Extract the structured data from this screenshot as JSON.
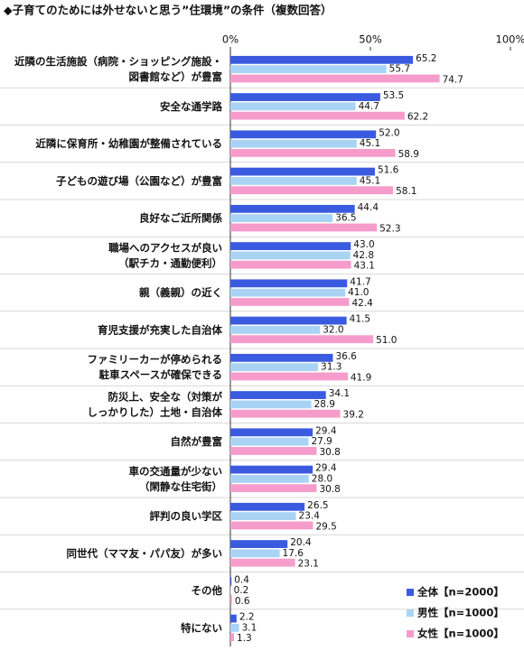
{
  "chart_data": {
    "type": "bar",
    "orientation": "horizontal",
    "title": "◆子育てのためには外せないと思う”住環境”の条件（複数回答）",
    "categories": [
      "近隣の生活施設（病院・ショッピング施設・\n図書館など）が豊富",
      "安全な通学路",
      "近隣に保育所・幼稚園が整備されている",
      "子どもの遊び場（公園など）が豊富",
      "良好なご近所関係",
      "職場へのアクセスが良い\n（駅チカ・通勤便利）",
      "親（義親）の近く",
      "育児支援が充実した自治体",
      "ファミリーカーが停められる\n駐車スペースが確保できる",
      "防災上、安全な（対策が\nしっかりした）土地・自治体",
      "自然が豊富",
      "車の交通量が少ない\n（閑静な住宅街）",
      "評判の良い学区",
      "同世代（ママ友・パパ友）が多い",
      "その他",
      "特にない"
    ],
    "series": [
      {
        "name": "全体【n=2000】",
        "color": "#3a5be0",
        "values": [
          65.2,
          53.5,
          52.0,
          51.6,
          44.4,
          43.0,
          41.7,
          41.5,
          36.6,
          34.1,
          29.4,
          29.4,
          26.5,
          20.4,
          0.4,
          2.2
        ],
        "value_labels": [
          "65.2",
          "53.5",
          "52.0",
          "51.6",
          "44.4",
          "43.0",
          "41.7",
          "41.5",
          "36.6",
          "34.1",
          "29.4",
          "29.4",
          "26.5",
          "20.4",
          "0.4",
          "2.2"
        ]
      },
      {
        "name": "男性【n=1000】",
        "color": "#a9d3f5",
        "values": [
          55.7,
          44.7,
          45.1,
          45.1,
          36.5,
          42.8,
          41.0,
          32.0,
          31.3,
          28.9,
          27.9,
          28.0,
          23.4,
          17.6,
          0.2,
          3.1
        ],
        "value_labels": [
          "55.7",
          "44.7",
          "45.1",
          "45.1",
          "36.5",
          "42.8",
          "41.0",
          "32.0",
          "31.3",
          "28.9",
          "27.9",
          "28.0",
          "23.4",
          "17.6",
          "0.2",
          "3.1"
        ]
      },
      {
        "name": "女性【n=1000】",
        "color": "#f59ccb",
        "values": [
          74.7,
          62.2,
          58.9,
          58.1,
          52.3,
          43.1,
          42.4,
          51.0,
          41.9,
          39.2,
          30.8,
          30.8,
          29.5,
          23.1,
          0.6,
          1.3
        ],
        "value_labels": [
          "74.7",
          "62.2",
          "58.9",
          "58.1",
          "52.3",
          "43.1",
          "42.4",
          "51.0",
          "41.9",
          "39.2",
          "30.8",
          "30.8",
          "29.5",
          "23.1",
          "0.6",
          "1.3"
        ]
      }
    ],
    "xlim": [
      0,
      100
    ],
    "xticks": [
      {
        "value": 0,
        "label": "0%"
      },
      {
        "value": 50,
        "label": "50%"
      },
      {
        "value": 100,
        "label": "100%"
      }
    ],
    "legend": "lower right"
  }
}
